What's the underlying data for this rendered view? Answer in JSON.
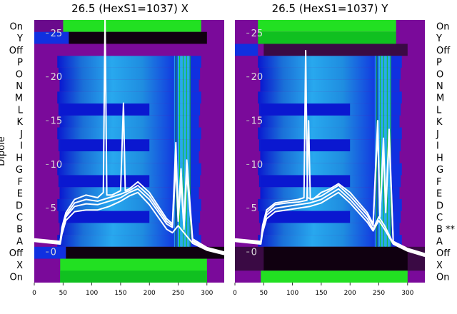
{
  "figure": {
    "ylabel": "Dipole",
    "row_labels": [
      "On",
      "Y",
      "Off",
      "P",
      "O",
      "N",
      "M",
      "L",
      "K",
      "J",
      "I",
      "H",
      "G",
      "F",
      "E",
      "D",
      "C",
      "B",
      "A",
      "Off",
      "X",
      "On"
    ],
    "row_labels_right": [
      "On",
      "Y",
      "Off",
      "P",
      "O",
      "N",
      "M",
      "L",
      "K",
      "J",
      "I",
      "H",
      "G",
      "F",
      "E",
      "D",
      "C",
      "B **",
      "A",
      "Off",
      "X",
      "On"
    ]
  },
  "chart_data": [
    {
      "type": "heatmap",
      "title": "26.5 (HexS1=1037) X",
      "xlabel": "",
      "ylabel": "Dipole",
      "x_ticks": [
        0,
        50,
        100,
        150,
        200,
        250,
        300
      ],
      "xlim": [
        0,
        330
      ],
      "overlay": {
        "type": "line",
        "color": "#ffffff",
        "y_ticks": [
          0,
          5,
          10,
          15,
          20,
          25
        ],
        "ylim": [
          -3.5,
          26.5
        ],
        "series": [
          {
            "x": [
              0,
              30,
              45,
              48,
              55,
              70,
              90,
              110,
              120,
              123,
              126,
              135,
              150,
              155,
              158,
              165,
              180,
              200,
              230,
              240,
              246,
              250,
              255,
              260,
              265,
              275,
              300,
              330
            ],
            "y": [
              1.5,
              1.3,
              1.2,
              2.8,
              4.5,
              6.0,
              6.5,
              6.2,
              6.8,
              27,
              6.5,
              6.5,
              7.0,
              17,
              7,
              7.2,
              8.0,
              6.8,
              3.8,
              3.2,
              12.5,
              4.0,
              9.5,
              3.0,
              10.5,
              1.5,
              0.5,
              0.0
            ]
          },
          {
            "x": [
              0,
              30,
              45,
              48,
              55,
              70,
              90,
              110,
              130,
              150,
              165,
              180,
              200,
              230,
              240,
              246,
              250,
              255,
              260,
              265,
              275,
              300,
              330
            ],
            "y": [
              1.4,
              1.2,
              1.1,
              2.5,
              4.2,
              5.6,
              6.0,
              5.8,
              6.2,
              6.6,
              7.0,
              7.6,
              6.4,
              3.5,
              3.0,
              11,
              3.8,
              9,
              2.8,
              9.5,
              1.3,
              0.4,
              -0.1
            ]
          },
          {
            "x": [
              0,
              30,
              45,
              48,
              55,
              70,
              90,
              110,
              130,
              150,
              165,
              180,
              200,
              230,
              240,
              246,
              250,
              255,
              260,
              265,
              275,
              300,
              330
            ],
            "y": [
              1.3,
              1.1,
              1.0,
              2.2,
              4.0,
              5.2,
              5.5,
              5.4,
              5.8,
              6.2,
              6.8,
              7.2,
              6.0,
              3.2,
              2.8,
              10,
              3.5,
              8,
              2.6,
              9,
              1.2,
              0.3,
              -0.2
            ]
          },
          {
            "x": [
              0,
              30,
              45,
              48,
              55,
              70,
              90,
              110,
              130,
              150,
              165,
              180,
              200,
              230,
              240,
              250,
              260,
              275,
              300,
              330
            ],
            "y": [
              1.2,
              1.0,
              0.9,
              2.0,
              3.6,
              4.6,
              4.8,
              4.8,
              5.2,
              5.8,
              6.4,
              6.8,
              5.4,
              2.6,
              2.2,
              3.0,
              2.2,
              1.0,
              0.2,
              -0.3
            ]
          }
        ]
      }
    },
    {
      "type": "heatmap",
      "title": "26.5 (HexS1=1037) Y",
      "xlabel": "",
      "ylabel": "",
      "x_ticks": [
        0,
        50,
        100,
        150,
        200,
        250,
        300
      ],
      "xlim": [
        0,
        330
      ],
      "overlay": {
        "type": "line",
        "color": "#ffffff",
        "y_ticks": [
          0,
          5,
          10,
          15,
          20,
          25
        ],
        "ylim": [
          -3.5,
          26.5
        ],
        "series": [
          {
            "x": [
              0,
              30,
              45,
              48,
              55,
              70,
              90,
              110,
              120,
              123,
              126,
              135,
              150,
              165,
              180,
              200,
              230,
              240,
              248,
              252,
              258,
              262,
              268,
              275,
              300,
              330
            ],
            "y": [
              1.5,
              1.3,
              1.2,
              3.0,
              4.8,
              5.6,
              5.8,
              6.0,
              6.2,
              23,
              6.2,
              6.0,
              6.8,
              7.2,
              7.8,
              6.8,
              4.5,
              3.2,
              15,
              4,
              13,
              5,
              14,
              1.2,
              0.4,
              -0.2
            ]
          },
          {
            "x": [
              0,
              30,
              45,
              48,
              55,
              70,
              90,
              110,
              125,
              128,
              131,
              150,
              165,
              180,
              200,
              230,
              240,
              248,
              252,
              258,
              262,
              268,
              275,
              300,
              330
            ],
            "y": [
              1.4,
              1.2,
              1.1,
              2.8,
              4.5,
              5.4,
              5.6,
              5.7,
              5.9,
              15,
              6.0,
              6.4,
              7.0,
              7.6,
              6.4,
              4.2,
              3.0,
              14,
              4,
              12,
              4.5,
              13,
              1.1,
              0.3,
              -0.3
            ]
          },
          {
            "x": [
              0,
              30,
              45,
              48,
              55,
              70,
              90,
              110,
              130,
              150,
              165,
              180,
              200,
              230,
              240,
              250,
              260,
              275,
              300,
              330
            ],
            "y": [
              1.3,
              1.1,
              1.0,
              2.5,
              4.2,
              5.0,
              5.2,
              5.4,
              5.6,
              6.0,
              6.6,
              7.2,
              6.0,
              3.8,
              2.6,
              4.0,
              3.0,
              1.0,
              0.2,
              -0.4
            ]
          },
          {
            "x": [
              0,
              30,
              45,
              48,
              55,
              70,
              90,
              110,
              130,
              150,
              165,
              180,
              200,
              230,
              240,
              250,
              260,
              275,
              300,
              330
            ],
            "y": [
              1.2,
              1.0,
              0.9,
              2.2,
              3.8,
              4.6,
              4.8,
              5.0,
              5.2,
              5.6,
              6.2,
              6.8,
              5.6,
              3.4,
              2.4,
              3.6,
              2.6,
              0.9,
              0.1,
              -0.5
            ]
          }
        ]
      }
    }
  ]
}
